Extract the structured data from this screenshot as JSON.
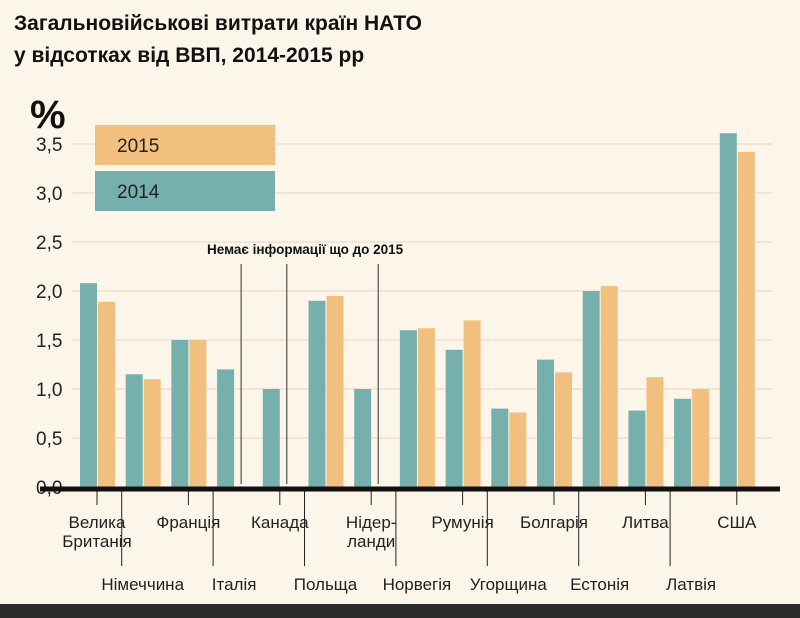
{
  "chart_data": {
    "type": "bar",
    "title": "Загальновійськові витрати  країн НАТО",
    "subtitle": "у відсотках від ВВП, 2014-2015 рр",
    "ylabel": "%",
    "ylim": [
      0,
      3.7
    ],
    "yticks": [
      "0,0",
      "0,5",
      "1,0",
      "1,5",
      "2,0",
      "2,5",
      "3,0",
      "3,5"
    ],
    "categories": [
      "Велика Британія",
      "Німеччина",
      "Франція",
      "Італія",
      "Канада",
      "Польща",
      "Нідер-ланди",
      "Норвегія",
      "Румунія",
      "Угорщина",
      "Болгарія",
      "Естонія",
      "Литва",
      "Латвія",
      "США"
    ],
    "series": [
      {
        "name": "2014",
        "color": "#76b0ad",
        "values": [
          2.08,
          1.15,
          1.5,
          1.2,
          1.0,
          1.9,
          1.0,
          1.6,
          1.4,
          0.8,
          1.3,
          2.0,
          0.78,
          0.9,
          3.61
        ]
      },
      {
        "name": "2015",
        "color": "#f2c07e",
        "values": [
          1.89,
          1.1,
          1.5,
          null,
          null,
          1.95,
          null,
          1.62,
          1.7,
          0.76,
          1.17,
          2.05,
          1.12,
          1.0,
          3.42
        ]
      }
    ],
    "annotation": "Немає інформації що до 2015",
    "grid": true,
    "legend": "top-left"
  }
}
